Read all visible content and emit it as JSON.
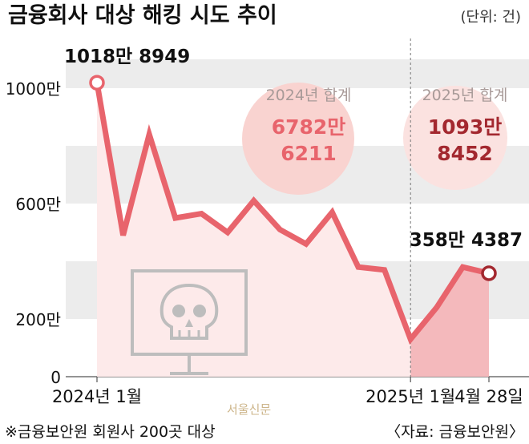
{
  "header": {
    "title": "금융회사 대상 해킹 시도 추이",
    "unit": "(단위: 건)"
  },
  "footer": {
    "note": "※금융보안원 회원사 200곳 대상",
    "source": "〈자료: 금융보안원〉",
    "watermark": "서울신문"
  },
  "summary": {
    "y2024": {
      "label": "2024년 합계",
      "line1": "6782만",
      "line2": "6211"
    },
    "y2025": {
      "label": "2025년 합계",
      "line1": "1093만",
      "line2": "8452"
    }
  },
  "colors": {
    "line": "#e8646c",
    "line_dark": "#a3282f",
    "band": "#ececec",
    "area2024": "#fdeaea",
    "area2025": "#f4b9bc",
    "circle2024": "#f9d3d0",
    "circle2025": "#fbe2e0",
    "icon": "#bdbdbd",
    "label2024": "#e8646c",
    "label2025": "#a3282f"
  },
  "icon": "skull-monitor-icon",
  "chart_data": {
    "type": "line",
    "title": "금융회사 대상 해킹 시도 추이",
    "unit": "건",
    "y_ticks": [
      {
        "value": 0,
        "label": "0"
      },
      {
        "value": 2000000,
        "label": "200만"
      },
      {
        "value": 6000000,
        "label": "600만"
      },
      {
        "value": 10000000,
        "label": "1000만"
      }
    ],
    "ylim": [
      0,
      11500000
    ],
    "x_tick_labels": [
      "2024년 1월",
      "2025년 1월",
      "4월 28일"
    ],
    "x": [
      "2024-01",
      "2024-02",
      "2024-03",
      "2024-04",
      "2024-05",
      "2024-06",
      "2024-07",
      "2024-08",
      "2024-09",
      "2024-10",
      "2024-11",
      "2024-12",
      "2025-01",
      "2025-02",
      "2025-03",
      "2025-04"
    ],
    "values": [
      10188949,
      4900000,
      8400000,
      5500000,
      5650000,
      5000000,
      6100000,
      5100000,
      4600000,
      5700000,
      3800000,
      3700000,
      1300000,
      2400000,
      3800000,
      3584387
    ],
    "point_labels": [
      {
        "index": 0,
        "text": "1018만 8949"
      },
      {
        "index": 15,
        "text": "358만 4387"
      }
    ],
    "divider_at": "2025-01",
    "grid": "alternating horizontal bands"
  }
}
